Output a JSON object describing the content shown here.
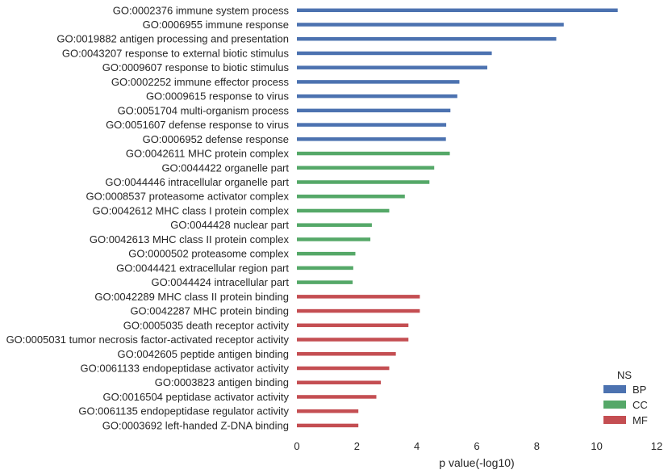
{
  "chart_data": {
    "type": "bar",
    "orientation": "horizontal",
    "xlabel": "p value(-log10)",
    "ylabel": "",
    "xlim": [
      0,
      12
    ],
    "xticks": [
      0,
      2,
      4,
      6,
      8,
      10,
      12
    ],
    "grid": false,
    "legend": {
      "title": "NS",
      "placement": "bottom-right",
      "entries": [
        {
          "name": "BP",
          "color": "#4c72b0"
        },
        {
          "name": "CC",
          "color": "#55a868"
        },
        {
          "name": "MF",
          "color": "#c44e52"
        }
      ]
    },
    "bars": [
      {
        "label": "GO:0002376 immune system process",
        "value": 10.7,
        "group": "BP"
      },
      {
        "label": "GO:0006955 immune response",
        "value": 8.9,
        "group": "BP"
      },
      {
        "label": "GO:0019882 antigen processing and presentation",
        "value": 8.65,
        "group": "BP"
      },
      {
        "label": "GO:0043207 response to external biotic stimulus",
        "value": 6.5,
        "group": "BP"
      },
      {
        "label": "GO:0009607 response to biotic stimulus",
        "value": 6.35,
        "group": "BP"
      },
      {
        "label": "GO:0002252 immune effector process",
        "value": 5.42,
        "group": "BP"
      },
      {
        "label": "GO:0009615 response to virus",
        "value": 5.35,
        "group": "BP"
      },
      {
        "label": "GO:0051704 multi-organism process",
        "value": 5.12,
        "group": "BP"
      },
      {
        "label": "GO:0051607 defense response to virus",
        "value": 4.98,
        "group": "BP"
      },
      {
        "label": "GO:0006952 defense response",
        "value": 4.97,
        "group": "BP"
      },
      {
        "label": "GO:0042611 MHC protein complex",
        "value": 5.1,
        "group": "CC"
      },
      {
        "label": "GO:0044422 organelle part",
        "value": 4.58,
        "group": "CC"
      },
      {
        "label": "GO:0044446 intracellular organelle part",
        "value": 4.42,
        "group": "CC"
      },
      {
        "label": "GO:0008537 proteasome activator complex",
        "value": 3.6,
        "group": "CC"
      },
      {
        "label": "GO:0042612 MHC class I protein complex",
        "value": 3.08,
        "group": "CC"
      },
      {
        "label": "GO:0044428 nuclear part",
        "value": 2.5,
        "group": "CC"
      },
      {
        "label": "GO:0042613 MHC class II protein complex",
        "value": 2.45,
        "group": "CC"
      },
      {
        "label": "GO:0000502 proteasome complex",
        "value": 1.95,
        "group": "CC"
      },
      {
        "label": "GO:0044421 extracellular region part",
        "value": 1.88,
        "group": "CC"
      },
      {
        "label": "GO:0044424 intracellular part",
        "value": 1.86,
        "group": "CC"
      },
      {
        "label": "GO:0042289 MHC class II protein binding",
        "value": 4.1,
        "group": "MF"
      },
      {
        "label": "GO:0042287 MHC protein binding",
        "value": 4.1,
        "group": "MF"
      },
      {
        "label": "GO:0005035 death receptor activity",
        "value": 3.72,
        "group": "MF"
      },
      {
        "label": "GO:0005031 tumor necrosis factor-activated receptor activity",
        "value": 3.72,
        "group": "MF"
      },
      {
        "label": "GO:0042605 peptide antigen binding",
        "value": 3.3,
        "group": "MF"
      },
      {
        "label": "GO:0061133 endopeptidase activator activity",
        "value": 3.08,
        "group": "MF"
      },
      {
        "label": "GO:0003823 antigen binding",
        "value": 2.8,
        "group": "MF"
      },
      {
        "label": "GO:0016504 peptidase activator activity",
        "value": 2.65,
        "group": "MF"
      },
      {
        "label": "GO:0061135 endopeptidase regulator activity",
        "value": 2.05,
        "group": "MF"
      },
      {
        "label": "GO:0003692 left-handed Z-DNA binding",
        "value": 2.05,
        "group": "MF"
      }
    ]
  }
}
